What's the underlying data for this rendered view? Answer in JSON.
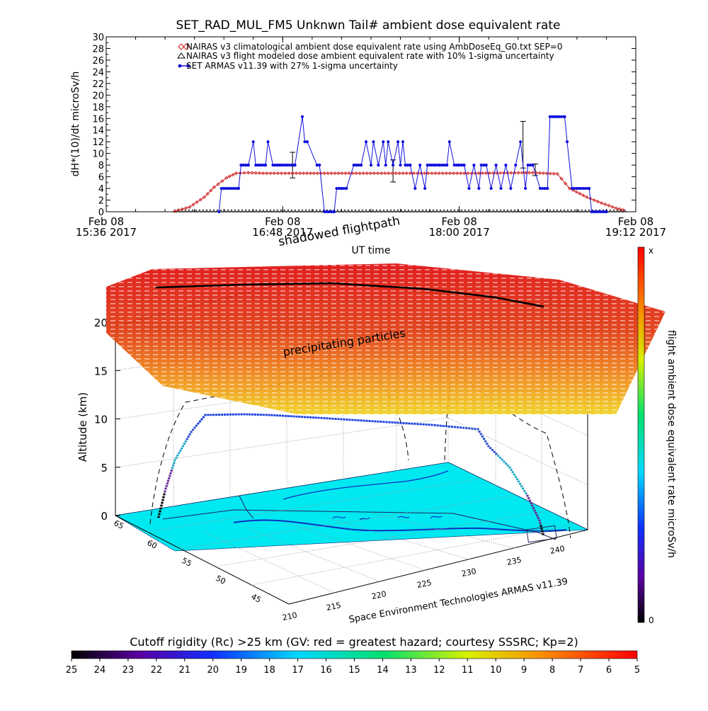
{
  "chart_data": [
    {
      "type": "line",
      "title": "SET_RAD_MUL_FM5 Unknwn Tail#  ambient dose equivalent rate",
      "xlabel": "UT time",
      "ylabel": "dH*(10)/dt microSv/h",
      "ylim": [
        0,
        30
      ],
      "y_ticks": [
        0,
        2,
        4,
        6,
        8,
        10,
        12,
        14,
        16,
        18,
        20,
        22,
        24,
        26,
        28,
        30
      ],
      "xlim": [
        "15:36",
        "19:12"
      ],
      "x_ticks": [
        {
          "t": "15:36",
          "line1": "Feb 08",
          "line2": "15:36 2017"
        },
        {
          "t": "16:48",
          "line1": "Feb 08",
          "line2": "16:48 2017"
        },
        {
          "t": "18:00",
          "line1": "Feb 08",
          "line2": "18:00 2017"
        },
        {
          "t": "19:12",
          "line1": "Feb 08",
          "line2": "19:12 2017"
        }
      ],
      "legend_position": "top-center",
      "series": [
        {
          "name": "NAIRAS v3 climatological ambient dose equivalent rate using AmbDoseEq_G0.txt SEP=0",
          "color": "#d02020",
          "marker": "diamond",
          "x": [
            "16:04",
            "16:10",
            "16:16",
            "16:20",
            "16:25",
            "16:29",
            "16:34",
            "16:40",
            "16:55",
            "17:15",
            "17:40",
            "18:05",
            "18:30",
            "18:40",
            "18:45",
            "18:52",
            "18:58",
            "19:04",
            "19:08"
          ],
          "y": [
            0.1,
            0.8,
            2.5,
            4.2,
            5.8,
            6.6,
            6.7,
            6.6,
            6.6,
            6.6,
            6.6,
            6.6,
            6.7,
            6.5,
            4.0,
            2.5,
            1.5,
            0.6,
            0.2
          ]
        },
        {
          "name": "NAIRAS v3 flight modeled dose ambient equivalent rate with 10% 1-sigma uncertainty",
          "color": "#000000",
          "marker": "triangle",
          "x": [
            "16:04",
            "19:08"
          ],
          "y": [
            0,
            0
          ],
          "errorbars": [
            {
              "x": "16:52",
              "y": 8.0,
              "err": 2.2
            },
            {
              "x": "17:33",
              "y": 7.0,
              "err": 1.9
            },
            {
              "x": "18:26",
              "y": 11.5,
              "err": 4.0
            },
            {
              "x": "18:31",
              "y": 7.2,
              "err": 1.0
            }
          ]
        },
        {
          "name": "SET ARMAS v11.39 with 27% 1-sigma uncertainty",
          "color": "#1010dd",
          "marker": "circle",
          "x": [
            "16:22",
            "16:23",
            "16:24",
            "16:30",
            "16:31",
            "16:34",
            "16:36",
            "16:37",
            "16:41",
            "16:42",
            "16:44",
            "16:46",
            "16:47",
            "16:53",
            "16:56",
            "16:57",
            "16:58",
            "17:02",
            "17:03",
            "17:05",
            "17:09",
            "17:10",
            "17:12",
            "17:14",
            "17:17",
            "17:18",
            "17:20",
            "17:22",
            "17:24",
            "17:25",
            "17:27",
            "17:29",
            "17:30",
            "17:31",
            "17:33",
            "17:35",
            "17:36",
            "17:37",
            "17:38",
            "17:40",
            "17:42",
            "17:44",
            "17:46",
            "17:47",
            "17:50",
            "17:52",
            "17:55",
            "17:56",
            "17:58",
            "18:00",
            "18:02",
            "18:04",
            "18:06",
            "18:08",
            "18:09",
            "18:11",
            "18:13",
            "18:15",
            "18:17",
            "18:19",
            "18:21",
            "18:23",
            "18:25",
            "18:27",
            "18:28",
            "18:30",
            "18:33",
            "18:36",
            "18:37",
            "18:43",
            "18:44",
            "18:46",
            "18:47",
            "18:53",
            "18:54",
            "19:00"
          ],
          "y": [
            0,
            4,
            4,
            4,
            8,
            8,
            12,
            8,
            8,
            12,
            8,
            8,
            8,
            8,
            16.3,
            12,
            12,
            8,
            8,
            0,
            0,
            4,
            4,
            4,
            8,
            8,
            8,
            12,
            8,
            12,
            8,
            12,
            8,
            12,
            8,
            12,
            8,
            12,
            8,
            8,
            4,
            8,
            4,
            8,
            8,
            8,
            8,
            12,
            8,
            8,
            8,
            4,
            8,
            4,
            8,
            8,
            4,
            8,
            4,
            8,
            4,
            8,
            12,
            4,
            8,
            8,
            4,
            4,
            16.3,
            16.3,
            12,
            4,
            4,
            4,
            0,
            0
          ]
        }
      ]
    },
    {
      "type": "scatter",
      "subtype": "3d-flight-track",
      "zlabel": "Altitude (km)",
      "zlim": [
        0,
        22
      ],
      "z_ticks": [
        0,
        5,
        10,
        15,
        20
      ],
      "x_ticks": [
        210,
        215,
        220,
        225,
        230,
        235,
        240
      ],
      "y_ticks": [
        45,
        50,
        55,
        60,
        65
      ],
      "surface_label": "precipitating particles",
      "track_label": "shadowed flightpath",
      "footer_label": "Space Environment Technologies ARMAS v11.39",
      "track_altitude_km": [
        0.5,
        3,
        6,
        8.8,
        10.5,
        10.6,
        10.5,
        10.1,
        9.9,
        9.7,
        9.4,
        8.8,
        7,
        5,
        3,
        0.5
      ],
      "colorbar": {
        "title": "flight ambient dose equivalent rate microSv/h",
        "top_label": "x",
        "bottom_label": "0"
      }
    },
    {
      "type": "heatmap",
      "subtype": "colorbar",
      "title": "Cutoff rigidity (Rc) >25 km (GV: red = greatest hazard; courtesy SSSRC; Kp=2)",
      "ticks": [
        "25",
        "24",
        "23",
        "22",
        "21",
        "20",
        "19",
        "18",
        "17",
        "16",
        "15",
        "14",
        "13",
        "12",
        "11",
        "10",
        "9",
        "8",
        "7",
        "6",
        "5"
      ]
    }
  ]
}
